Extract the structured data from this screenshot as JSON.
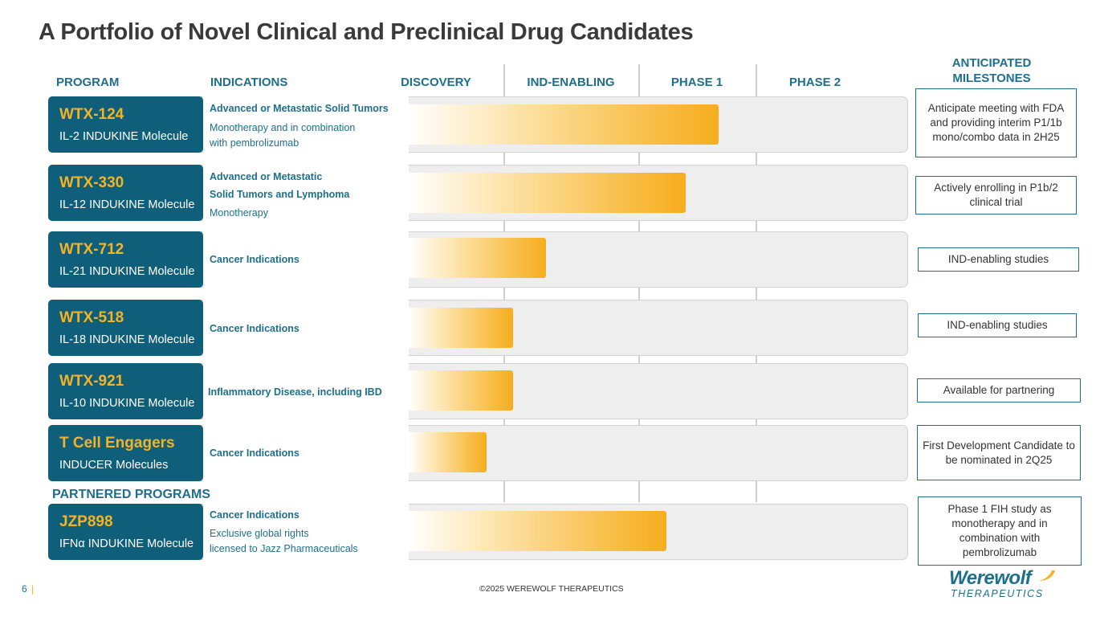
{
  "title": "A Portfolio of Novel Clinical and Preclinical Drug Candidates",
  "headers": {
    "program": "PROGRAM",
    "indications": "INDICATIONS",
    "discovery": "DISCOVERY",
    "ind_enabling": "IND-ENABLING",
    "phase1": "PHASE 1",
    "phase2": "PHASE 2",
    "milestones_line1": "ANTICIPATED",
    "milestones_line2": "MILESTONES"
  },
  "partnered_label": "PARTNERED PROGRAMS",
  "programs": [
    {
      "name": "WTX-124",
      "subtitle": "IL-2 INDUKINE Molecule",
      "indication_lines": [
        "Advanced or Metastatic Solid Tumors",
        "Monotherapy and in combination",
        "with pembrolizumab"
      ],
      "milestone": "Anticipate meeting with FDA and providing interim P1/1b mono/combo data in 2H25",
      "progress": "Phase 1"
    },
    {
      "name": "WTX-330",
      "subtitle": "IL-12 INDUKINE Molecule",
      "indication_lines": [
        "Advanced or Metastatic",
        "Solid Tumors and Lymphoma",
        "Monotherapy"
      ],
      "milestone": "Actively enrolling in P1b/2 clinical trial",
      "progress": "Phase 1"
    },
    {
      "name": "WTX-712",
      "subtitle": "IL-21 INDUKINE Molecule",
      "indication_lines": [
        "Cancer Indications"
      ],
      "milestone": "IND-enabling studies",
      "progress": "IND-enabling"
    },
    {
      "name": "WTX-518",
      "subtitle": "IL-18 INDUKINE Molecule",
      "indication_lines": [
        "Cancer Indications"
      ],
      "milestone": "IND-enabling studies",
      "progress": "IND-enabling"
    },
    {
      "name": "WTX-921",
      "subtitle": "IL-10 INDUKINE Molecule",
      "indication_lines": [
        "Inflammatory Disease, including IBD"
      ],
      "milestone": "Available for partnering",
      "progress": "IND-enabling"
    },
    {
      "name": "T Cell Engagers",
      "subtitle": "INDUCER Molecules",
      "indication_lines": [
        "Cancer Indications"
      ],
      "milestone": "First Development Candidate to be nominated in 2Q25",
      "progress": "Discovery"
    },
    {
      "name": "JZP898",
      "subtitle": "IFNα INDUKINE Molecule",
      "indication_lines": [
        "Cancer Indications",
        "Exclusive global rights",
        "licensed to Jazz Pharmaceuticals"
      ],
      "milestone": "Phase 1 FIH study as monotherapy and in combination with pembrolizumab",
      "progress": "Phase 1"
    }
  ],
  "footer": {
    "page_number": "6",
    "separator": "|",
    "copyright": "©2025 WEREWOLF THERAPEUTICS",
    "logo_word": "Werewolf",
    "logo_sub": "THERAPEUTICS"
  },
  "colors": {
    "brand_teal": "#0f5f7a",
    "header_teal": "#1d6f8c",
    "accent_gold": "#f5b324"
  }
}
